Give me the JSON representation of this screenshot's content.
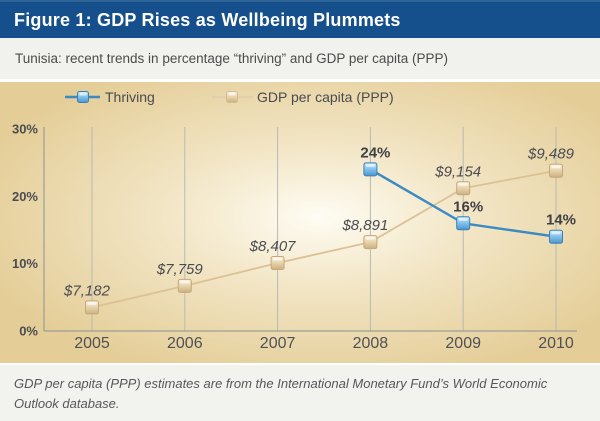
{
  "header": {
    "title": "Figure 1: GDP Rises as Wellbeing Plummets"
  },
  "subtitle": "Tunisia: recent trends in percentage “thriving” and GDP per capita (PPP)",
  "footer": {
    "note": "GDP per capita (PPP) estimates are from the International Monetary Fund’s World Economic Outlook database."
  },
  "colors": {
    "header_bg": "#15508c",
    "header_text": "#ffffff",
    "subtitle_bg": "#f1f1ee",
    "chart_bg": "#e4cd97",
    "chart_glow": "#fffef7",
    "gridline": "#b7bab4",
    "axis": "#9b9e96",
    "tick_text": "#4c4d52",
    "year_text": "#505156",
    "thriving_line": "#3a8ac3",
    "thriving_marker": "#85c4ee",
    "thriving_label_text": "#3f4045",
    "gdp_line": "#dcc195",
    "gdp_marker": "#e9d6ae",
    "gdp_label_text": "#4b4c51",
    "footer_bg": "#f2f2ef"
  },
  "chart_data": {
    "type": "line",
    "title": "Figure 1: GDP Rises as Wellbeing Plummets",
    "subtitle": "Tunisia: recent trends in percentage “thriving” and GDP per capita (PPP)",
    "categories": [
      "2005",
      "2006",
      "2007",
      "2008",
      "2009",
      "2010"
    ],
    "y_axis": {
      "range": [
        0,
        30
      ],
      "ticks": [
        0,
        10,
        20,
        30
      ],
      "tick_labels": [
        "0%",
        "10%",
        "20%",
        "30%"
      ]
    },
    "grid": "vertical-only",
    "legend_position": "top",
    "series": [
      {
        "name": "Thriving",
        "unit": "% thriving",
        "x": [
          "2008",
          "2009",
          "2010"
        ],
        "values": [
          24,
          16,
          14
        ],
        "data_labels": [
          "24%",
          "16%",
          "14%"
        ]
      },
      {
        "name": "GDP per capita (PPP)",
        "unit": "USD (PPP)",
        "x": [
          "2005",
          "2006",
          "2007",
          "2008",
          "2009",
          "2010"
        ],
        "values": [
          7182,
          7759,
          8407,
          8891,
          9154,
          9489
        ],
        "data_labels": [
          "$7,182",
          "$7,759",
          "$8,407",
          "$8,891",
          "$9,154",
          "$9,489"
        ],
        "plot_positions_on_percent_axis": [
          3.5,
          6.7,
          10.1,
          13.2,
          21.2,
          23.8
        ]
      }
    ]
  }
}
